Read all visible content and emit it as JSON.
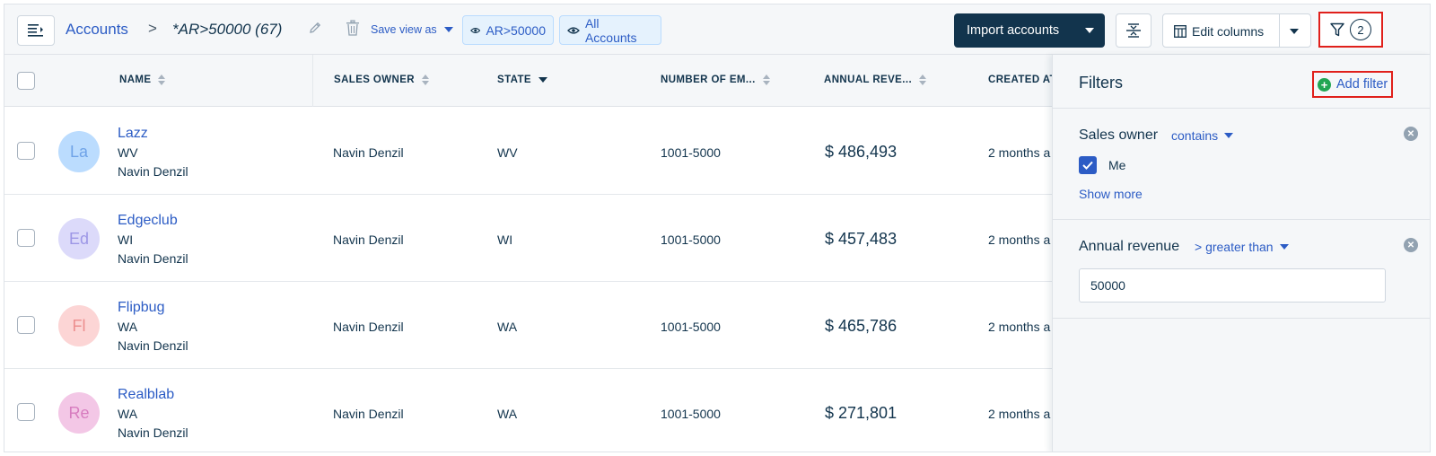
{
  "breadcrumb": {
    "root": "Accounts",
    "separator": ">",
    "current_view": "*AR>50000 (67)"
  },
  "toolbar": {
    "save_view_label": "Save view as",
    "chips": [
      {
        "label": "AR>50000",
        "icon": "eye-icon"
      },
      {
        "label": "All Accounts",
        "icon": "eye-icon"
      }
    ],
    "import_label": "Import accounts",
    "edit_columns_label": "Edit columns",
    "filter_count": "2"
  },
  "table": {
    "columns": [
      {
        "key": "name",
        "label": "NAME",
        "sort": "none"
      },
      {
        "key": "sales_owner",
        "label": "SALES OWNER",
        "sort": "none"
      },
      {
        "key": "state",
        "label": "STATE",
        "sort": "desc"
      },
      {
        "key": "employees",
        "label": "NUMBER OF EM...",
        "sort": "none"
      },
      {
        "key": "revenue",
        "label": "ANNUAL REVE...",
        "sort": "none"
      },
      {
        "key": "created_at",
        "label": "CREATED AT",
        "sort": "none"
      }
    ],
    "rows": [
      {
        "initials": "La",
        "name": "Lazz",
        "state": "WV",
        "owner": "Navin Denzil",
        "sales_owner": "Navin Denzil",
        "state_col": "WV",
        "employees": "1001-5000",
        "revenue": "$ 486,493",
        "created_at": "2 months a",
        "avatar_bg": "#bbdcfe",
        "avatar_fg": "#6fa3e8"
      },
      {
        "initials": "Ed",
        "name": "Edgeclub",
        "state": "WI",
        "owner": "Navin Denzil",
        "sales_owner": "Navin Denzil",
        "state_col": "WI",
        "employees": "1001-5000",
        "revenue": "$ 457,483",
        "created_at": "2 months a",
        "avatar_bg": "#dcdafa",
        "avatar_fg": "#9d97e6"
      },
      {
        "initials": "Fl",
        "name": "Flipbug",
        "state": "WA",
        "owner": "Navin Denzil",
        "sales_owner": "Navin Denzil",
        "state_col": "WA",
        "employees": "1001-5000",
        "revenue": "$ 465,786",
        "created_at": "2 months a",
        "avatar_bg": "#fcd5d5",
        "avatar_fg": "#ec8e8e"
      },
      {
        "initials": "Re",
        "name": "Realblab",
        "state": "WA",
        "owner": "Navin Denzil",
        "sales_owner": "Navin Denzil",
        "state_col": "WA",
        "employees": "1001-5000",
        "revenue": "$ 271,801",
        "created_at": "2 months a",
        "avatar_bg": "#f3c7e6",
        "avatar_fg": "#d77cbf"
      }
    ]
  },
  "filters_panel": {
    "title": "Filters",
    "add_filter_label": "Add filter",
    "filters": [
      {
        "field": "Sales owner",
        "operator": "contains",
        "option": "Me",
        "option_checked": true,
        "show_more": "Show more"
      },
      {
        "field": "Annual revenue",
        "operator": "> greater than",
        "value": "50000"
      }
    ]
  },
  "colors": {
    "link": "#2c5cc5",
    "primary_dark": "#12344d",
    "highlight": "#e0201b",
    "success": "#22a653"
  }
}
